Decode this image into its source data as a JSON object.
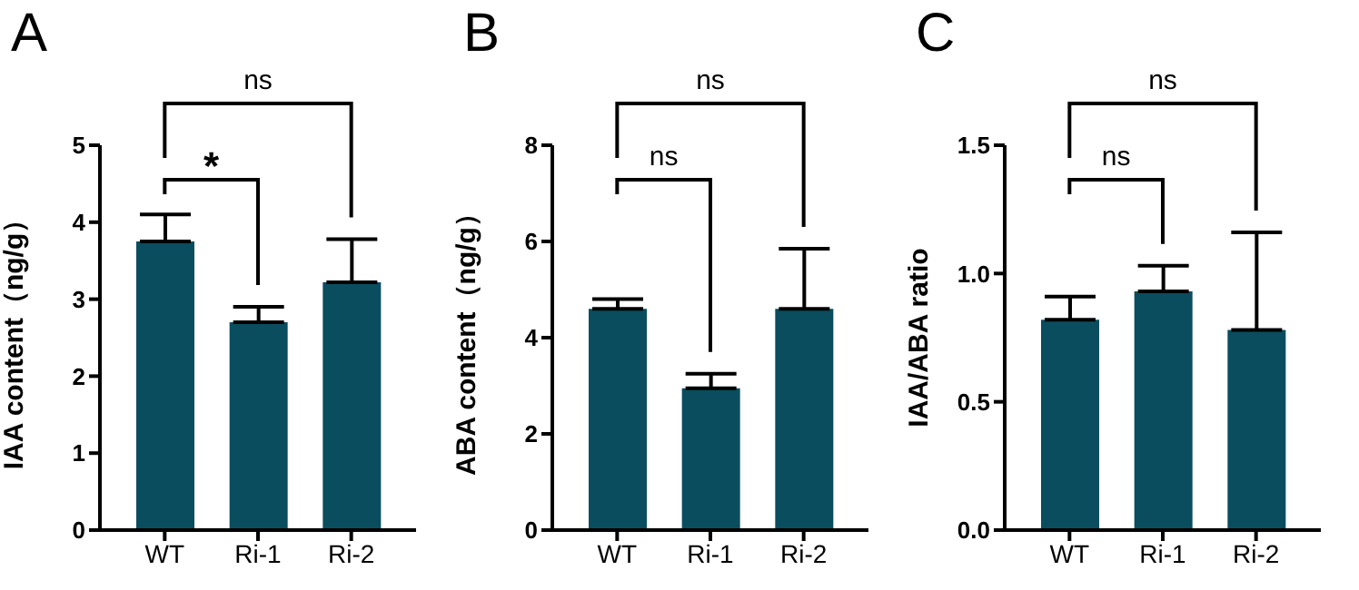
{
  "chart_data": [
    {
      "type": "bar",
      "title": "A",
      "ylabel": "IAA content（ng/g）",
      "categories": [
        "WT",
        "Ri-1",
        "Ri-2"
      ],
      "values": [
        3.75,
        2.7,
        3.22
      ],
      "errors": [
        [
          3.75,
          4.1
        ],
        [
          2.7,
          2.9
        ],
        [
          3.22,
          3.78
        ]
      ],
      "color": "#0a4d5e",
      "ylim": [
        0,
        5
      ],
      "yticks": [
        0,
        1,
        2,
        3,
        4,
        5
      ],
      "grid": false,
      "annotations": [
        "ns",
        "*"
      ]
    },
    {
      "type": "bar",
      "title": "B",
      "ylabel": "ABA content（ng/g）",
      "categories": [
        "WT",
        "Ri-1",
        "Ri-2"
      ],
      "values": [
        4.6,
        2.95,
        4.6
      ],
      "errors": [
        [
          4.6,
          4.8
        ],
        [
          2.95,
          3.25
        ],
        [
          4.6,
          5.85
        ]
      ],
      "color": "#0a4d5e",
      "ylim": [
        0,
        8
      ],
      "yticks": [
        0,
        2,
        4,
        6,
        8
      ],
      "grid": false,
      "annotations": [
        "ns",
        "ns"
      ]
    },
    {
      "type": "bar",
      "title": "C",
      "ylabel": "IAA/ABA ratio",
      "categories": [
        "WT",
        "Ri-1",
        "Ri-2"
      ],
      "values": [
        0.82,
        0.93,
        0.78
      ],
      "errors": [
        [
          0.82,
          0.91
        ],
        [
          0.93,
          1.03
        ],
        [
          0.78,
          1.16
        ]
      ],
      "color": "#0a4d5e",
      "ylim": [
        0,
        1.5
      ],
      "yticks": [
        {
          "value": 0,
          "label": "0.0"
        },
        {
          "value": 0.5,
          "label": "0.5"
        },
        {
          "value": 1,
          "label": "1.0"
        },
        {
          "value": 1.5,
          "label": "1.5"
        }
      ],
      "grid": false,
      "annotations": [
        "ns",
        "ns"
      ]
    }
  ]
}
